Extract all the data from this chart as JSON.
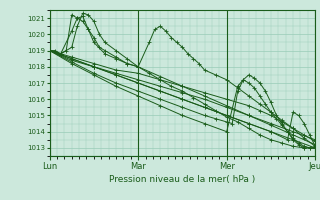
{
  "title": "",
  "xlabel": "Pression niveau de la mer( hPa )",
  "ylabel": "",
  "bg_color": "#cce8dc",
  "plot_bg_color": "#cce8dc",
  "grid_color": "#99ccb8",
  "line_color": "#1a5c1a",
  "tick_label_color": "#1a5c1a",
  "axis_color": "#1a5c1a",
  "ylim": [
    1012.5,
    1021.5
  ],
  "yticks": [
    1013,
    1014,
    1015,
    1016,
    1017,
    1018,
    1019,
    1020,
    1021
  ],
  "day_labels": [
    "Lun",
    "Mar",
    "Mer",
    "Jeu"
  ],
  "day_positions": [
    0,
    96,
    192,
    288
  ],
  "total_hours": 288,
  "lines": [
    {
      "x": [
        0,
        6,
        12,
        18,
        24,
        30,
        36,
        42,
        48,
        54,
        60,
        72,
        84,
        96,
        120,
        144,
        168,
        192,
        216,
        240,
        264,
        288
      ],
      "y": [
        1019.0,
        1019.0,
        1018.8,
        1019.0,
        1021.2,
        1021.0,
        1020.8,
        1020.3,
        1019.8,
        1019.2,
        1019.0,
        1018.6,
        1018.2,
        1018.0,
        1017.4,
        1016.8,
        1016.2,
        1015.6,
        1015.0,
        1014.4,
        1013.8,
        1013.2
      ]
    },
    {
      "x": [
        0,
        12,
        24,
        30,
        36,
        42,
        48,
        54,
        60,
        72,
        84,
        96,
        108,
        120,
        132,
        144,
        156,
        168,
        180,
        192,
        204,
        216,
        228,
        240,
        252,
        264,
        276,
        288
      ],
      "y": [
        1019.0,
        1018.8,
        1019.2,
        1020.5,
        1021.3,
        1021.2,
        1020.8,
        1020.0,
        1019.5,
        1019.0,
        1018.5,
        1018.0,
        1017.6,
        1017.2,
        1016.8,
        1016.5,
        1016.1,
        1015.7,
        1015.3,
        1014.9,
        1014.6,
        1014.2,
        1013.8,
        1013.5,
        1013.3,
        1013.1,
        1013.0,
        1013.0
      ]
    },
    {
      "x": [
        0,
        12,
        24,
        30,
        36,
        42,
        48,
        60,
        72,
        84,
        96,
        108,
        114,
        120,
        126,
        132,
        138,
        144,
        150,
        156,
        162,
        168,
        180,
        192,
        204,
        216,
        228,
        240,
        252,
        264,
        276,
        288
      ],
      "y": [
        1019.0,
        1018.8,
        1020.2,
        1021.0,
        1021.1,
        1020.3,
        1019.5,
        1018.8,
        1018.5,
        1018.2,
        1018.0,
        1019.5,
        1020.3,
        1020.5,
        1020.2,
        1019.8,
        1019.5,
        1019.2,
        1018.8,
        1018.5,
        1018.2,
        1017.8,
        1017.5,
        1017.2,
        1016.7,
        1016.2,
        1015.7,
        1015.2,
        1014.7,
        1014.2,
        1013.6,
        1013.1
      ]
    },
    {
      "x": [
        0,
        12,
        24,
        48,
        72,
        96,
        120,
        144,
        168,
        192,
        216,
        228,
        240,
        252,
        264,
        276,
        288
      ],
      "y": [
        1019.0,
        1018.8,
        1018.6,
        1018.2,
        1017.8,
        1017.6,
        1017.2,
        1016.8,
        1016.4,
        1016.0,
        1015.6,
        1015.3,
        1015.0,
        1014.6,
        1014.2,
        1013.8,
        1013.4
      ]
    },
    {
      "x": [
        0,
        12,
        24,
        48,
        72,
        96,
        120,
        144,
        168,
        192,
        216,
        240,
        264,
        288
      ],
      "y": [
        1019.0,
        1018.7,
        1018.4,
        1018.0,
        1017.6,
        1017.2,
        1016.8,
        1016.4,
        1016.0,
        1015.5,
        1015.0,
        1014.5,
        1014.0,
        1013.5
      ]
    },
    {
      "x": [
        0,
        24,
        48,
        72,
        96,
        120,
        144,
        168,
        192,
        216,
        240,
        264,
        288
      ],
      "y": [
        1019.0,
        1018.5,
        1018.0,
        1017.5,
        1017.0,
        1016.5,
        1016.0,
        1015.5,
        1015.0,
        1014.5,
        1014.0,
        1013.5,
        1013.0
      ]
    },
    {
      "x": [
        0,
        24,
        48,
        72,
        96,
        120,
        144,
        168,
        180,
        192,
        198,
        204,
        210,
        216,
        222,
        228,
        234,
        240,
        246,
        252,
        258,
        264,
        270,
        276,
        282,
        288
      ],
      "y": [
        1019.0,
        1018.3,
        1017.6,
        1017.0,
        1016.5,
        1016.0,
        1015.5,
        1015.0,
        1014.8,
        1014.6,
        1014.5,
        1016.5,
        1017.2,
        1017.5,
        1017.3,
        1017.0,
        1016.5,
        1015.8,
        1015.0,
        1014.5,
        1014.0,
        1013.5,
        1013.2,
        1013.0,
        1013.0,
        1013.0
      ]
    },
    {
      "x": [
        0,
        24,
        48,
        72,
        96,
        120,
        144,
        168,
        192,
        204,
        210,
        216,
        222,
        228,
        234,
        240,
        246,
        252,
        258,
        264,
        270,
        276,
        282,
        288
      ],
      "y": [
        1019.0,
        1018.2,
        1017.5,
        1016.8,
        1016.2,
        1015.6,
        1015.0,
        1014.5,
        1014.0,
        1016.8,
        1017.2,
        1017.0,
        1016.7,
        1016.2,
        1015.7,
        1015.2,
        1014.8,
        1014.4,
        1014.0,
        1013.6,
        1013.3,
        1013.1,
        1013.0,
        1013.0
      ]
    },
    {
      "x": [
        0,
        24,
        48,
        72,
        96,
        120,
        144,
        168,
        192,
        216,
        240,
        258,
        264,
        270,
        276,
        282,
        288
      ],
      "y": [
        1019.0,
        1018.5,
        1018.0,
        1017.5,
        1017.0,
        1016.5,
        1016.0,
        1015.5,
        1015.0,
        1014.5,
        1014.0,
        1013.5,
        1015.2,
        1015.0,
        1014.5,
        1013.8,
        1013.1
      ]
    }
  ]
}
